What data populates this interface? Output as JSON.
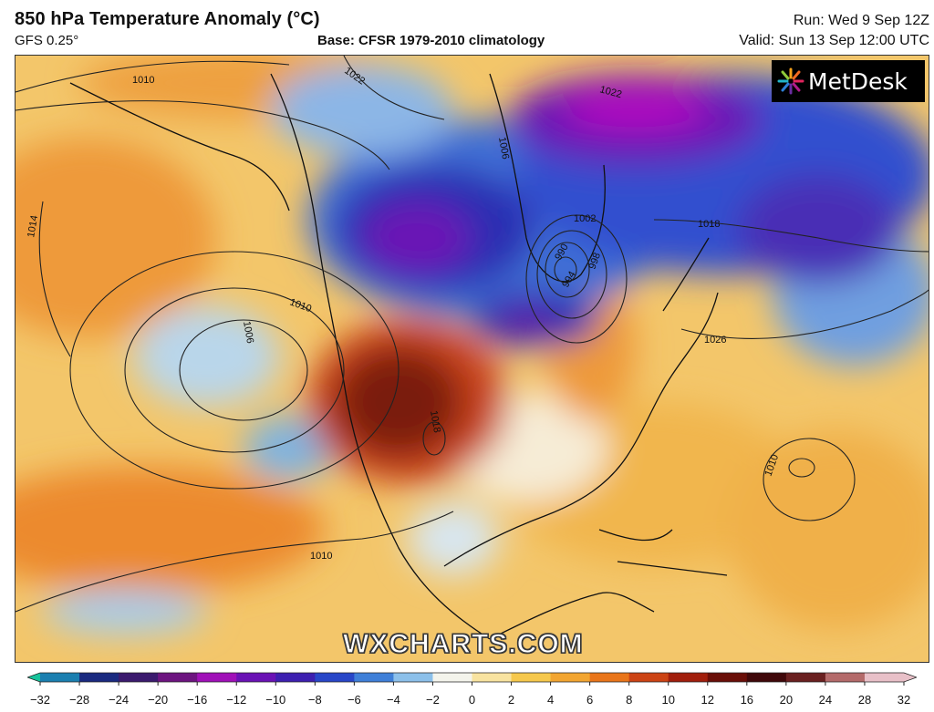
{
  "header": {
    "title": "850 hPa Temperature Anomaly (°C)",
    "model": "GFS 0.25°",
    "base": "Base: CFSR 1979-2010 climatology",
    "run": "Run: Wed 9 Sep 12Z",
    "valid": "Valid: Sun 13 Sep 12:00 UTC"
  },
  "logo": {
    "text": "MetDesk",
    "icon": "metdesk-burst-icon"
  },
  "watermark": "WXCHARTS.COM",
  "isobars": {
    "labels": [
      "1010",
      "1022",
      "1014",
      "1010",
      "1006",
      "1006",
      "1002",
      "998",
      "994",
      "990",
      "1018",
      "1026",
      "1018",
      "1010",
      "1010",
      "1022"
    ]
  },
  "colorbar": {
    "ticks": [
      "−32",
      "−28",
      "−24",
      "−20",
      "−16",
      "−12",
      "−10",
      "−8",
      "−6",
      "−4",
      "−2",
      "0",
      "2",
      "4",
      "6",
      "8",
      "10",
      "12",
      "16",
      "20",
      "24",
      "28",
      "32"
    ],
    "colors": [
      "#17c39b",
      "#1b7fb0",
      "#1a2a80",
      "#3b1a6e",
      "#6d1480",
      "#a010b8",
      "#6a12b5",
      "#3d1fb0",
      "#2846c8",
      "#3f7fd8",
      "#8cc0ea",
      "#f4f4ec",
      "#f8e3a0",
      "#f6c84c",
      "#f2a531",
      "#e9751a",
      "#cc4314",
      "#a11e0c",
      "#6a0e08",
      "#40080a",
      "#6a2020",
      "#b46a6a",
      "#e8c0c8"
    ]
  }
}
